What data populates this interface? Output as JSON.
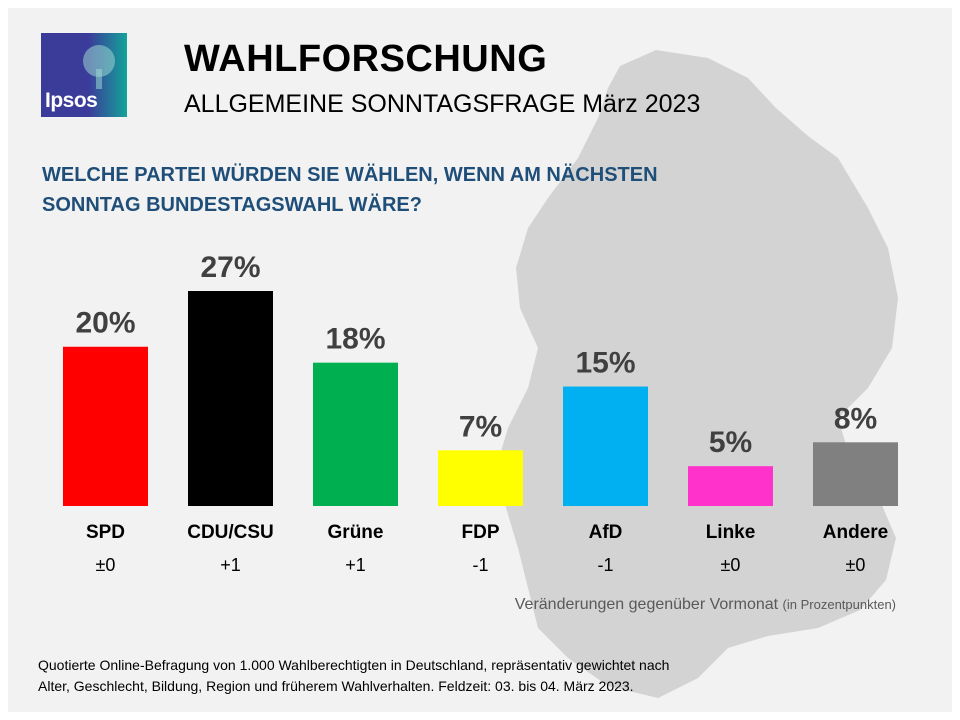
{
  "header": {
    "logo_text": "Ipsos",
    "title": "WAHLFORSCHUNG",
    "subtitle": "ALLGEMEINE SONNTAGSFRAGE März 2023"
  },
  "question": "WELCHE PARTEI WÜRDEN SIE WÄHLEN, WENN AM NÄCHSTEN SONNTAG BUNDESTAGSWAHL WÄRE?",
  "colors": {
    "background": "#f2f2f2",
    "map": "#d3d3d3",
    "question": "#1f4e79"
  },
  "chart_data": {
    "type": "bar",
    "title": "WELCHE PARTEI WÜRDEN SIE WÄHLEN, WENN AM NÄCHSTEN SONNTAG BUNDESTAGSWAHL WÄRE?",
    "categories": [
      "SPD",
      "CDU/CSU",
      "Grüne",
      "FDP",
      "AfD",
      "Linke",
      "Andere"
    ],
    "values": [
      20,
      27,
      18,
      7,
      15,
      5,
      8
    ],
    "value_labels": [
      "20%",
      "27%",
      "18%",
      "7%",
      "15%",
      "5%",
      "8%"
    ],
    "changes": [
      "±0",
      "+1",
      "+1",
      "-1",
      "-1",
      "±0",
      "±0"
    ],
    "colors": [
      "#ff0000",
      "#000000",
      "#00b050",
      "#ffff00",
      "#00b0f0",
      "#ff33cc",
      "#808080"
    ],
    "unit": "%",
    "ylim": [
      0,
      27
    ],
    "xlabel": "",
    "ylabel": "",
    "grid": false,
    "legend": "none"
  },
  "change_note": {
    "text": "Veränderungen gegenüber Vormonat",
    "unit_text": "(in Prozentpunkten)"
  },
  "footnote": {
    "line1": "Quotierte Online-Befragung  von 1.000 Wahlberechtigten  in Deutschland, repräsentativ gewichtet nach",
    "line2": "Alter, Geschlecht, Bildung, Region und früherem Wahlverhalten.  Feldzeit: 03. bis 04. März 2023."
  }
}
